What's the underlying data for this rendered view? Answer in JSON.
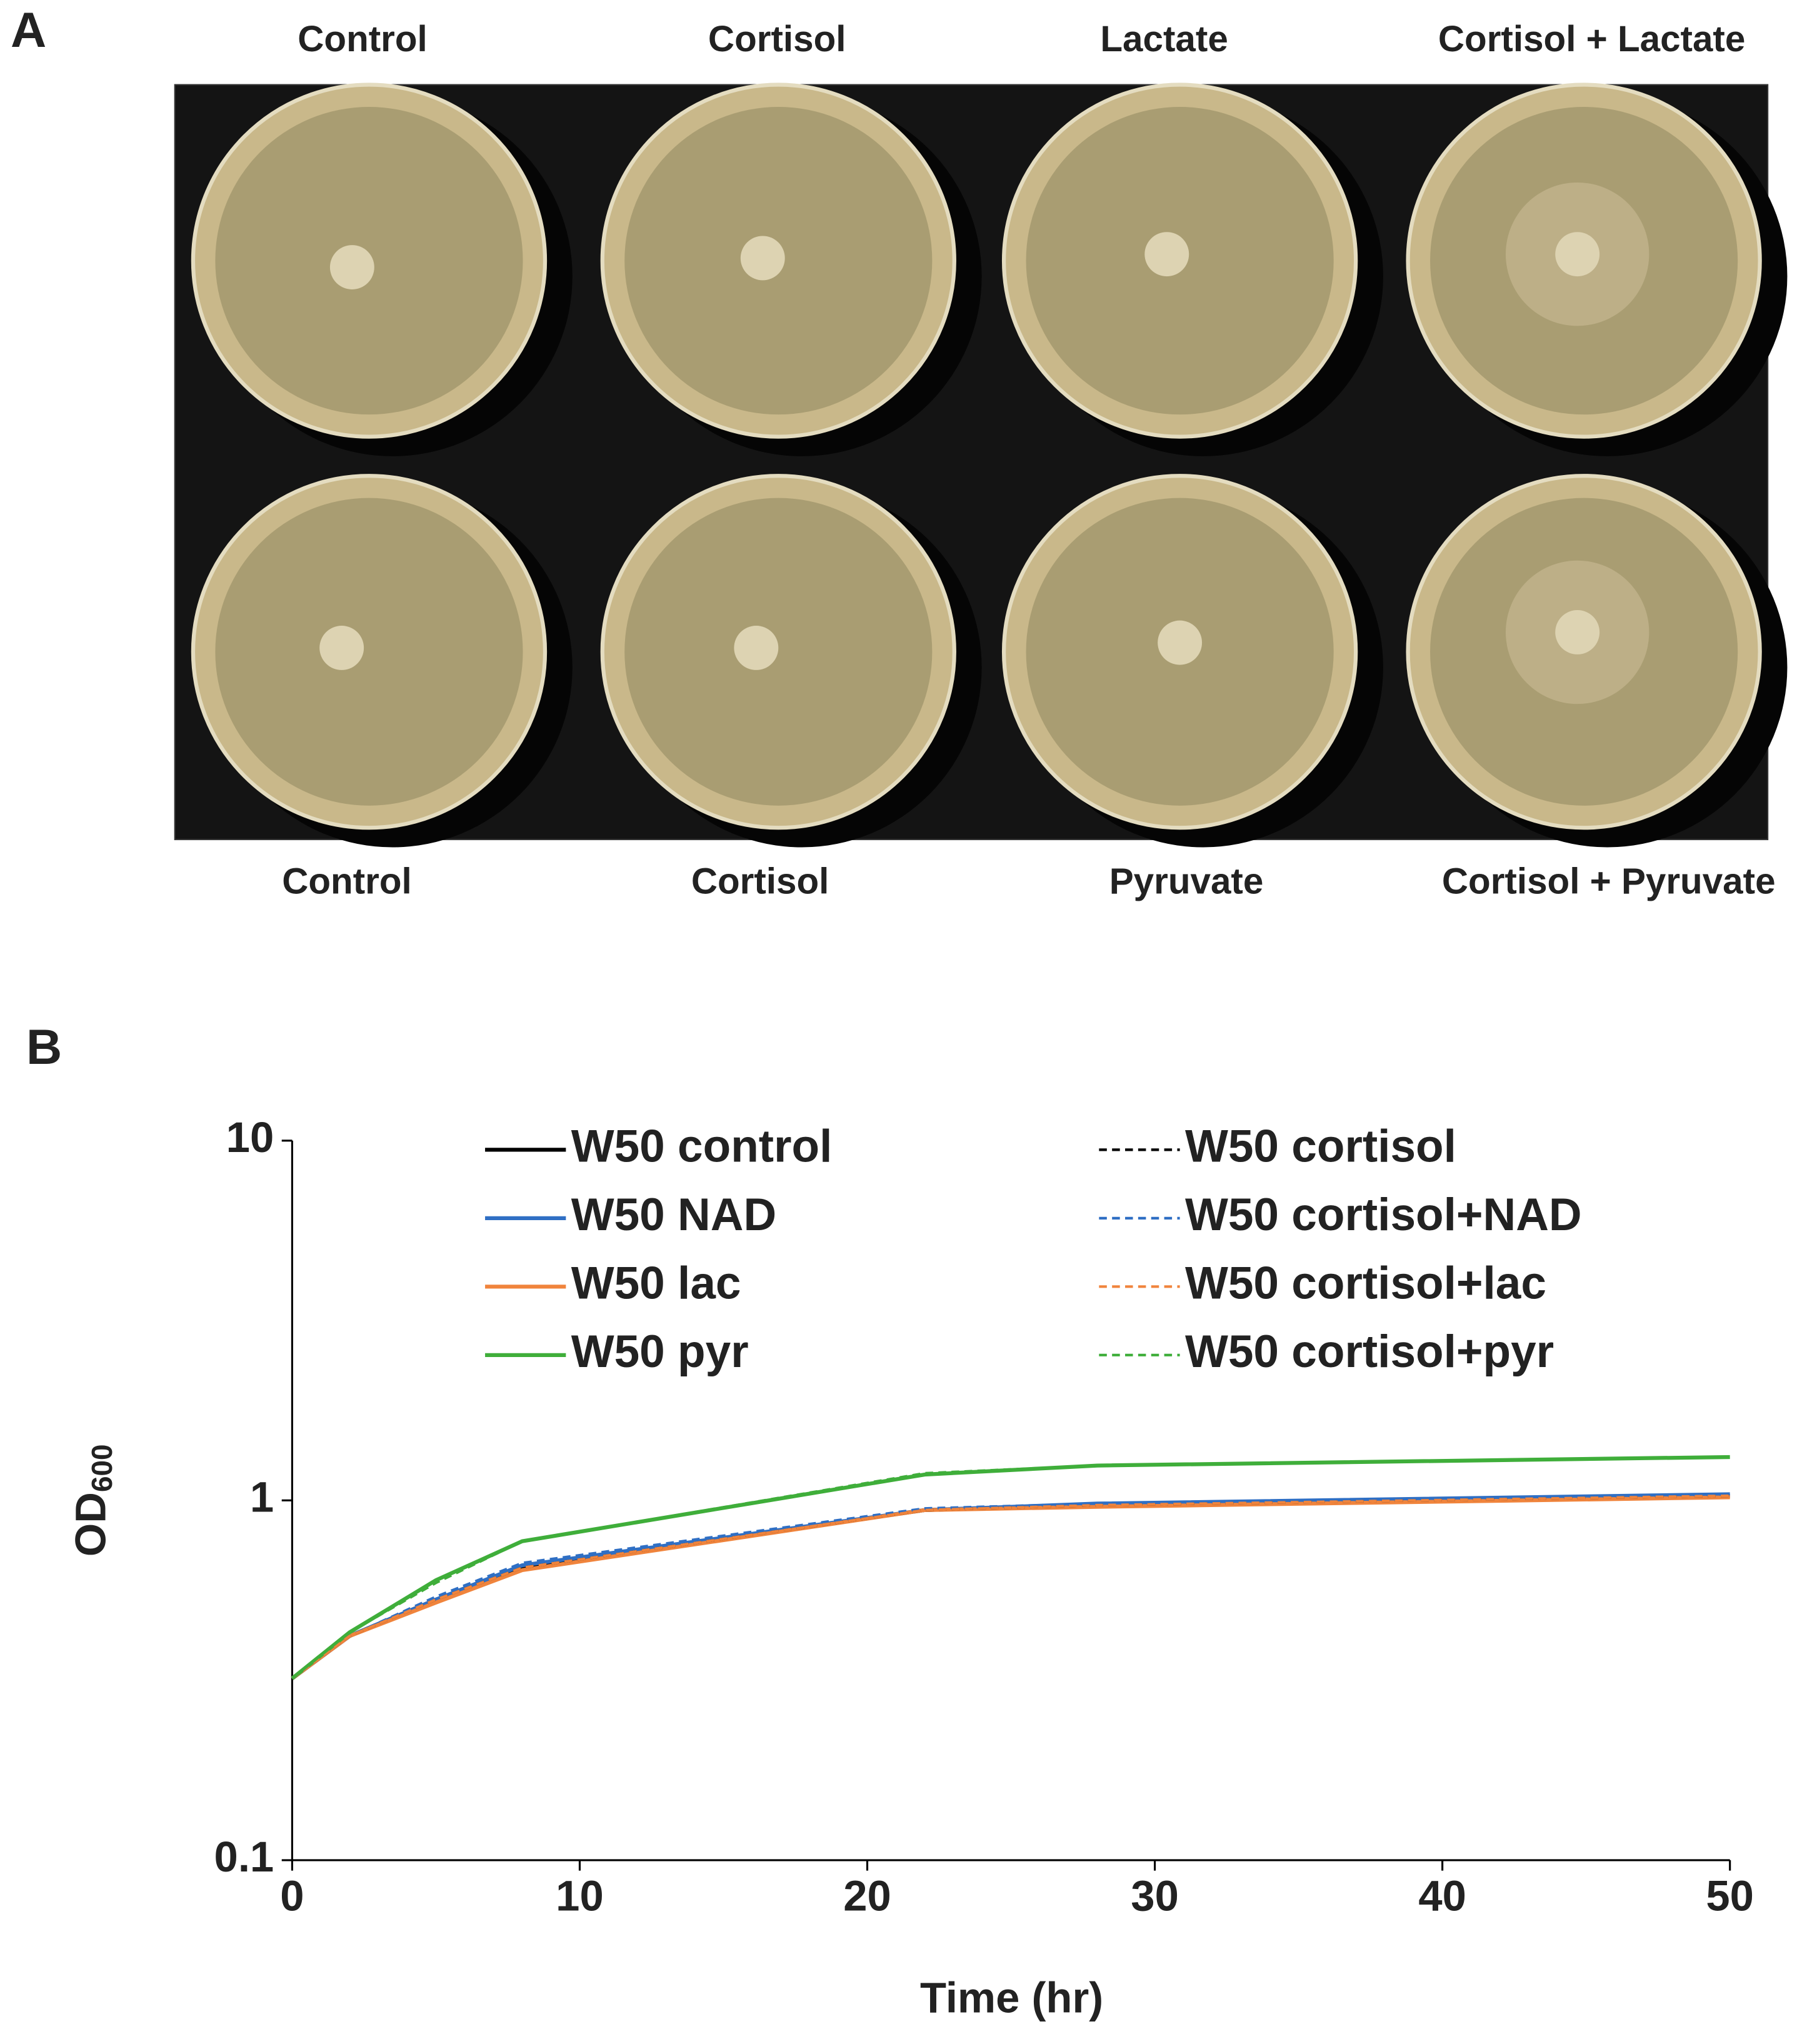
{
  "panel_a": {
    "letter": "A",
    "top_labels": [
      "Control",
      "Cortisol",
      "Lactate",
      "Cortisol + Lactate"
    ],
    "bottom_labels": [
      "Control",
      "Cortisol",
      "Pyruvate",
      "Cortisol + Pyruvate"
    ]
  },
  "chart_data": {
    "type": "line",
    "panel_letter": "B",
    "x_label": "Time (hr)",
    "y_label": {
      "text": "OD",
      "subscript": "600"
    },
    "x": [
      0,
      2,
      5,
      8,
      22,
      28,
      50
    ],
    "xlim": [
      0,
      50
    ],
    "xticks": [
      0,
      10,
      20,
      30,
      40,
      50
    ],
    "ylim": [
      0.1,
      10
    ],
    "yticks": [
      0.1,
      1,
      10
    ],
    "log_y": true,
    "grid": false,
    "legend": "top",
    "series": [
      {
        "name": "W50 control",
        "color": "#000000",
        "dashed": false,
        "values": [
          0.32,
          0.42,
          0.53,
          0.65,
          0.94,
          0.97,
          1.03
        ]
      },
      {
        "name": "W50 NAD",
        "color": "#2f6fc4",
        "dashed": false,
        "values": [
          0.32,
          0.42,
          0.53,
          0.66,
          0.94,
          0.98,
          1.04
        ]
      },
      {
        "name": "W50 lac",
        "color": "#f0843c",
        "dashed": false,
        "values": [
          0.32,
          0.42,
          0.52,
          0.64,
          0.94,
          0.96,
          1.02
        ]
      },
      {
        "name": "W50 pyr",
        "color": "#3fae3a",
        "dashed": false,
        "values": [
          0.32,
          0.43,
          0.6,
          0.77,
          1.18,
          1.25,
          1.32
        ]
      },
      {
        "name": "W50 cortisol",
        "color": "#000000",
        "dashed": true,
        "values": [
          0.32,
          0.42,
          0.53,
          0.65,
          0.94,
          0.97,
          1.03
        ]
      },
      {
        "name": "W50 cortisol+NAD",
        "color": "#2f6fc4",
        "dashed": true,
        "values": [
          0.32,
          0.42,
          0.54,
          0.67,
          0.95,
          0.98,
          1.04
        ]
      },
      {
        "name": "W50 cortisol+lac",
        "color": "#f0843c",
        "dashed": true,
        "values": [
          0.32,
          0.42,
          0.53,
          0.65,
          0.94,
          0.97,
          1.03
        ]
      },
      {
        "name": "W50 cortisol+pyr",
        "color": "#3fae3a",
        "dashed": true,
        "values": [
          0.32,
          0.43,
          0.59,
          0.77,
          1.19,
          1.25,
          1.32
        ]
      }
    ]
  }
}
